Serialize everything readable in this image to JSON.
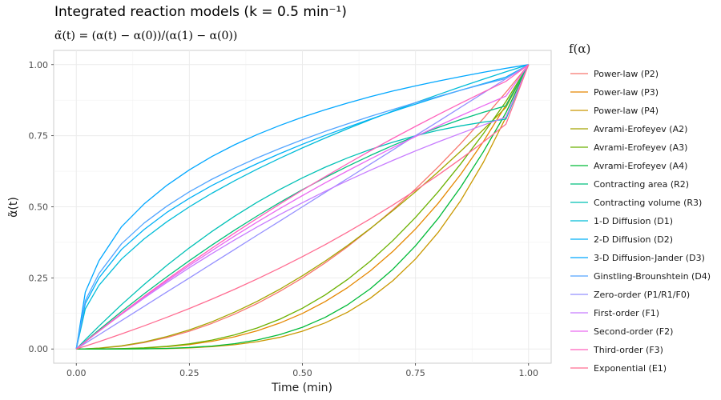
{
  "chart_data": {
    "type": "line",
    "title": "Integrated reaction models (k = 0.5 min⁻¹)",
    "subtitle": "α̃(t) = (α(t) − α(0))/(α(1) − α(0))",
    "xlabel": "Time (min)",
    "ylabel": "α̃(t)",
    "xlim": [
      -0.05,
      1.05
    ],
    "ylim": [
      -0.05,
      1.05
    ],
    "x_ticks": [
      0.0,
      0.25,
      0.5,
      0.75,
      1.0
    ],
    "x_tick_labels": [
      "0.00",
      "0.25",
      "0.50",
      "0.75",
      "1.00"
    ],
    "y_ticks": [
      0.0,
      0.25,
      0.5,
      0.75,
      1.0
    ],
    "y_tick_labels": [
      "0.00",
      "0.25",
      "0.50",
      "0.75",
      "1.00"
    ],
    "grid": true,
    "legend_title": "f(α)",
    "legend_position": "right",
    "x": [
      0.0,
      0.02,
      0.05,
      0.1,
      0.15,
      0.2,
      0.25,
      0.3,
      0.35,
      0.4,
      0.45,
      0.5,
      0.55,
      0.6,
      0.65,
      0.7,
      0.75,
      0.8,
      0.85,
      0.9,
      0.95,
      1.0
    ],
    "series": [
      {
        "name": "Power-law (P2)",
        "color": "#F8766D",
        "values": [
          0,
          0.0004,
          0.0025,
          0.01,
          0.0225,
          0.04,
          0.0625,
          0.09,
          0.1225,
          0.16,
          0.2025,
          0.25,
          0.3025,
          0.36,
          0.4225,
          0.49,
          0.5625,
          0.64,
          0.7225,
          0.81,
          0.9025,
          1.0
        ]
      },
      {
        "name": "Power-law (P3)",
        "color": "#E58700",
        "values": [
          0,
          0.0,
          0.0001,
          0.001,
          0.0034,
          0.008,
          0.0156,
          0.027,
          0.0429,
          0.064,
          0.0911,
          0.125,
          0.1664,
          0.216,
          0.2746,
          0.343,
          0.4219,
          0.512,
          0.6141,
          0.729,
          0.8574,
          1.0
        ]
      },
      {
        "name": "Power-law (P4)",
        "color": "#C99800",
        "values": [
          0,
          0.0,
          0.0,
          0.0001,
          0.0005,
          0.0016,
          0.0039,
          0.0081,
          0.015,
          0.0256,
          0.041,
          0.0625,
          0.0915,
          0.1296,
          0.1785,
          0.2401,
          0.3164,
          0.4096,
          0.522,
          0.6561,
          0.8145,
          1.0
        ]
      },
      {
        "name": "Avrami-Erofeyev (A2)",
        "color": "#A3A500",
        "values": [
          0,
          0.0005,
          0.003,
          0.0111,
          0.0246,
          0.0433,
          0.0671,
          0.0958,
          0.1294,
          0.1676,
          0.2103,
          0.2574,
          0.3087,
          0.3641,
          0.4234,
          0.4864,
          0.5529,
          0.6227,
          0.6956,
          0.7712,
          0.8495,
          1.0
        ]
      },
      {
        "name": "Avrami-Erofeyev (A3)",
        "color": "#6BB100",
        "values": [
          0,
          0.0,
          0.0001,
          0.0012,
          0.0039,
          0.0093,
          0.0181,
          0.0312,
          0.0495,
          0.0738,
          0.1048,
          0.1433,
          0.1898,
          0.2448,
          0.3086,
          0.3812,
          0.4626,
          0.5527,
          0.651,
          0.757,
          0.8699,
          1.0
        ]
      },
      {
        "name": "Avrami-Erofeyev (A4)",
        "color": "#00BA38",
        "values": [
          0,
          0.0,
          0.0,
          0.0002,
          0.0007,
          0.0021,
          0.005,
          0.0102,
          0.0187,
          0.0316,
          0.0503,
          0.0763,
          0.1109,
          0.1556,
          0.2117,
          0.2804,
          0.3626,
          0.4588,
          0.5691,
          0.6933,
          0.8305,
          1.0
        ]
      },
      {
        "name": "Contracting area (R2)",
        "color": "#00BF7D",
        "values": [
          0,
          0.0271,
          0.0671,
          0.1317,
          0.1938,
          0.2535,
          0.3107,
          0.3654,
          0.4178,
          0.4676,
          0.5151,
          0.5601,
          0.6026,
          0.6427,
          0.6804,
          0.7157,
          0.7485,
          0.7789,
          0.8068,
          0.8323,
          0.8554,
          1.0
        ]
      },
      {
        "name": "Contracting volume (R3)",
        "color": "#00C0B5",
        "values": [
          0,
          0.0326,
          0.0802,
          0.1558,
          0.2269,
          0.2935,
          0.3556,
          0.4134,
          0.4668,
          0.516,
          0.561,
          0.6019,
          0.6389,
          0.6721,
          0.7015,
          0.7274,
          0.7498,
          0.7689,
          0.7848,
          0.7979,
          0.8081,
          1.0
        ]
      },
      {
        "name": "1-D Diffusion (D1)",
        "color": "#00BCD8",
        "values": [
          0,
          0.1414,
          0.2236,
          0.3162,
          0.3873,
          0.4472,
          0.5,
          0.5477,
          0.5916,
          0.6325,
          0.6708,
          0.7071,
          0.7416,
          0.7746,
          0.8062,
          0.8367,
          0.866,
          0.8944,
          0.922,
          0.9487,
          0.9747,
          1.0
        ]
      },
      {
        "name": "2-D Diffusion (D2)",
        "color": "#00B0F6",
        "values": [
          0,
          0.16,
          0.25,
          0.35,
          0.42,
          0.48,
          0.53,
          0.575,
          0.615,
          0.652,
          0.687,
          0.72,
          0.751,
          0.78,
          0.808,
          0.835,
          0.861,
          0.886,
          0.91,
          0.933,
          0.956,
          1.0
        ]
      },
      {
        "name": "3-D Diffusion-Jander (D3)",
        "color": "#00A7FF",
        "values": [
          0,
          0.2,
          0.31,
          0.43,
          0.51,
          0.575,
          0.63,
          0.677,
          0.718,
          0.754,
          0.786,
          0.815,
          0.841,
          0.865,
          0.887,
          0.907,
          0.925,
          0.942,
          0.958,
          0.973,
          0.987,
          1.0
        ]
      },
      {
        "name": "Ginstling-Brounshtein (D4)",
        "color": "#53A5FF",
        "values": [
          0,
          0.17,
          0.265,
          0.37,
          0.443,
          0.502,
          0.553,
          0.597,
          0.636,
          0.672,
          0.705,
          0.736,
          0.765,
          0.792,
          0.818,
          0.842,
          0.866,
          0.888,
          0.91,
          0.931,
          0.951,
          1.0
        ]
      },
      {
        "name": "Zero-order (P1/R1/F0)",
        "color": "#9590FF",
        "values": [
          0,
          0.02,
          0.05,
          0.1,
          0.15,
          0.2,
          0.25,
          0.3,
          0.35,
          0.4,
          0.45,
          0.5,
          0.55,
          0.6,
          0.65,
          0.7,
          0.75,
          0.8,
          0.85,
          0.9,
          0.95,
          1.0
        ]
      },
      {
        "name": "First-order (F1)",
        "color": "#C77CFF",
        "values": [
          0,
          0.0252,
          0.0622,
          0.1219,
          0.179,
          0.2336,
          0.2859,
          0.3358,
          0.3835,
          0.4292,
          0.4728,
          0.5144,
          0.5542,
          0.5922,
          0.6286,
          0.6633,
          0.6965,
          0.7282,
          0.7584,
          0.7874,
          0.815,
          1.0
        ]
      },
      {
        "name": "Second-order (F2)",
        "color": "#EA6AF1",
        "values": [
          0,
          0.0253,
          0.0628,
          0.1236,
          0.1823,
          0.2389,
          0.2935,
          0.3462,
          0.3971,
          0.4462,
          0.4937,
          0.5395,
          0.5838,
          0.6266,
          0.668,
          0.708,
          0.7467,
          0.7841,
          0.8204,
          0.8554,
          0.8893,
          1.0
        ]
      },
      {
        "name": "Third-order (F3)",
        "color": "#FF62BC",
        "values": [
          0,
          0.0254,
          0.0633,
          0.1251,
          0.1851,
          0.2433,
          0.2998,
          0.3546,
          0.4078,
          0.4595,
          0.5097,
          0.5585,
          0.6059,
          0.652,
          0.6968,
          0.7404,
          0.7828,
          0.824,
          0.8641,
          0.9031,
          0.9411,
          1.0
        ]
      },
      {
        "name": "Exponential (E1)",
        "color": "#FF6C91",
        "values": [
          0,
          0.0102,
          0.0258,
          0.0529,
          0.0813,
          0.1112,
          0.1425,
          0.1754,
          0.21,
          0.2463,
          0.2845,
          0.3246,
          0.3667,
          0.411,
          0.4575,
          0.5063,
          0.5576,
          0.6116,
          0.6682,
          0.7277,
          0.7902,
          1.0
        ]
      }
    ]
  }
}
